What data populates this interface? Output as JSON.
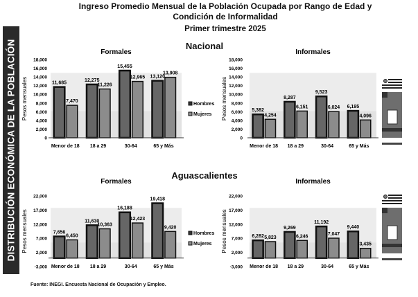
{
  "side_label": "DISTRIBUCIÓN ECONÓMICA DE LA POBLACIÓN",
  "title": [
    "Ingreso Promedio Mensual de la Población Ocupada por Rango de Edad y",
    "Condición de Informalidad",
    "Primer trimestre 2025"
  ],
  "sections": {
    "nacional": "Nacional",
    "aguascalientes": "Aguascalientes"
  },
  "source": "Fuente: INEGI. Encuesta Nacional de Ocupación y Empleo.",
  "colors": {
    "hombres": "#666666",
    "mujeres": "#8c8c8c",
    "band": "#ececec"
  },
  "chart_data": [
    {
      "type": "bar",
      "title": "Formales",
      "region": "Nacional",
      "ylabel": "Pesos mensuales",
      "categories": [
        "Menor de 18",
        "18 a 29",
        "30-64",
        "65 y Más"
      ],
      "ylim": [
        0,
        18000
      ],
      "yticks": [
        0,
        2000,
        4000,
        6000,
        8000,
        10000,
        12000,
        14000,
        16000,
        18000
      ],
      "legend": "right",
      "series": [
        {
          "name": "Hombres",
          "values": [
            11685,
            12275,
            15455,
            13120
          ]
        },
        {
          "name": "Mujeres",
          "values": [
            7470,
            11226,
            12965,
            13908
          ]
        }
      ]
    },
    {
      "type": "bar",
      "title": "Informales",
      "region": "Nacional",
      "ylabel": "Pesos mensuales",
      "categories": [
        "Menor de 18",
        "18 a 29",
        "30-64",
        "65 y Más"
      ],
      "ylim": [
        0,
        18000
      ],
      "yticks": [
        0,
        2000,
        4000,
        6000,
        8000,
        10000,
        12000,
        14000,
        16000,
        18000
      ],
      "series": [
        {
          "name": "Hombres",
          "values": [
            5382,
            8287,
            9523,
            6195
          ]
        },
        {
          "name": "Mujeres",
          "values": [
            4254,
            6151,
            6024,
            4096
          ]
        }
      ]
    },
    {
      "type": "bar",
      "title": "Formales",
      "region": "Aguascalientes",
      "ylabel": "Pesos mensuales",
      "categories": [
        "Menor de 18",
        "18 a 29",
        "30-64",
        "65 y Más"
      ],
      "ylim": [
        -3000,
        22000
      ],
      "yticks": [
        -3000,
        2000,
        7000,
        12000,
        17000,
        22000
      ],
      "legend": "right",
      "series": [
        {
          "name": "Hombres",
          "values": [
            7656,
            11630,
            16188,
            19418
          ]
        },
        {
          "name": "Mujeres",
          "values": [
            6450,
            10363,
            12423,
            9420
          ]
        }
      ]
    },
    {
      "type": "bar",
      "title": "Informales",
      "region": "Aguascalientes",
      "ylabel": "Pesos mensuales",
      "categories": [
        "Menor de 18",
        "18 a 29",
        "30-64",
        "65 y Más"
      ],
      "ylim": [
        -3000,
        22000
      ],
      "yticks": [
        -3000,
        2000,
        7000,
        12000,
        17000,
        22000
      ],
      "series": [
        {
          "name": "Hombres",
          "values": [
            6282,
            9269,
            11192,
            9440
          ]
        },
        {
          "name": "Mujeres",
          "values": [
            5823,
            6246,
            7047,
            3435
          ]
        }
      ]
    }
  ]
}
